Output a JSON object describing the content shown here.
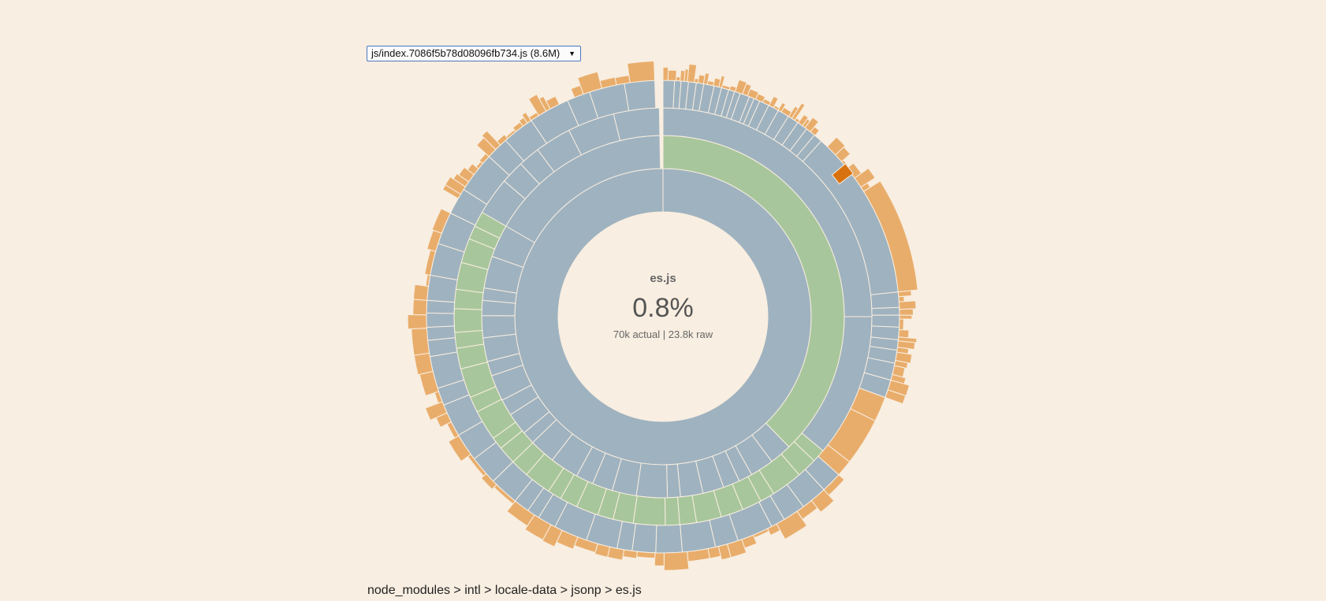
{
  "bundle_select": {
    "value": "js/index.7086f5b78d08096fb734.js (8.6M)",
    "arrow": "▼"
  },
  "center": {
    "name": "es.js",
    "percent": "0.8%",
    "sizes": "70k actual | 23.8k raw"
  },
  "breadcrumb": {
    "parts": [
      "node_modules",
      "intl",
      "locale-data",
      "jsonp",
      "es.js"
    ],
    "separator": " > "
  },
  "colors": {
    "background": "#f8eee1",
    "directory": "#9fb2bf",
    "module": "#a8c69b",
    "file": "#e9ad6b",
    "highlight": "#d8720e",
    "stroke": "#f8eee1"
  },
  "chart_data": {
    "type": "sunburst",
    "title": "es.js",
    "rings": [
      {
        "depth": 1,
        "segments": [
          {
            "start": 0,
            "end": 360,
            "kind": "directory"
          }
        ]
      },
      {
        "depth": 2,
        "segments": [
          {
            "start": 0,
            "end": 136,
            "kind": "module"
          },
          {
            "start": 136,
            "end": 300,
            "kind": "directory",
            "subdivisions": 24
          },
          {
            "start": 300,
            "end": 359,
            "kind": "directory"
          }
        ]
      },
      {
        "depth": 3,
        "segments": [
          {
            "start": 0,
            "end": 90,
            "kind": "directory"
          },
          {
            "start": 90,
            "end": 130,
            "kind": "directory"
          },
          {
            "start": 130,
            "end": 300,
            "kind": "module",
            "subdivisions": 30
          },
          {
            "start": 300,
            "end": 359,
            "kind": "directory",
            "subdivisions": 6
          }
        ]
      },
      {
        "depth": 4,
        "segments": [
          {
            "start": 0,
            "end": 42,
            "kind": "directory",
            "subdivisions": 20
          },
          {
            "start": 42,
            "end": 84,
            "kind": "directory"
          },
          {
            "start": 84,
            "end": 110,
            "kind": "directory",
            "subdivisions": 8
          },
          {
            "start": 110,
            "end": 132,
            "kind": "file",
            "subdivisions": 3
          },
          {
            "start": 132,
            "end": 296,
            "kind": "directory",
            "subdivisions": 28
          },
          {
            "start": 296,
            "end": 358,
            "kind": "directory",
            "subdivisions": 8
          }
        ]
      },
      {
        "depth": 5,
        "segments": [
          {
            "start": 0,
            "end": 40,
            "kind": "file",
            "subdivisions": 30
          },
          {
            "start": 44,
            "end": 58,
            "kind": "file",
            "subdivisions": 6
          },
          {
            "start": 58,
            "end": 84,
            "kind": "file"
          },
          {
            "start": 84,
            "end": 110,
            "kind": "file",
            "subdivisions": 16
          },
          {
            "start": 132,
            "end": 296,
            "kind": "file",
            "subdivisions": 40
          },
          {
            "start": 300,
            "end": 334,
            "kind": "file",
            "subdivisions": 18
          },
          {
            "start": 338,
            "end": 358,
            "kind": "file",
            "subdivisions": 5
          }
        ]
      }
    ],
    "highlighted_angle": [
      50,
      53
    ]
  }
}
